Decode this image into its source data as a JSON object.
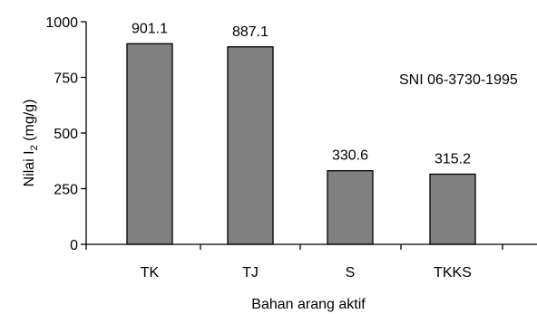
{
  "chart_data": {
    "type": "bar",
    "categories": [
      "TK",
      "TJ",
      "S",
      "TKKS"
    ],
    "values": [
      901.1,
      887.1,
      330.6,
      315.2
    ],
    "data_labels": [
      "901.1",
      "887.1",
      "330.6",
      "315.2"
    ],
    "xlabel": "Bahan arang aktif",
    "ylabel": {
      "main": "Nilai I",
      "subscript": "2",
      "suffix": " (mg/g)"
    },
    "ylim": [
      0,
      1000
    ],
    "yticks": [
      0,
      250,
      500,
      750,
      1000
    ],
    "annotation": "SNI 06-3730-1995",
    "grid": false,
    "bar_color": "#808080",
    "bar_outline": "#000000"
  }
}
